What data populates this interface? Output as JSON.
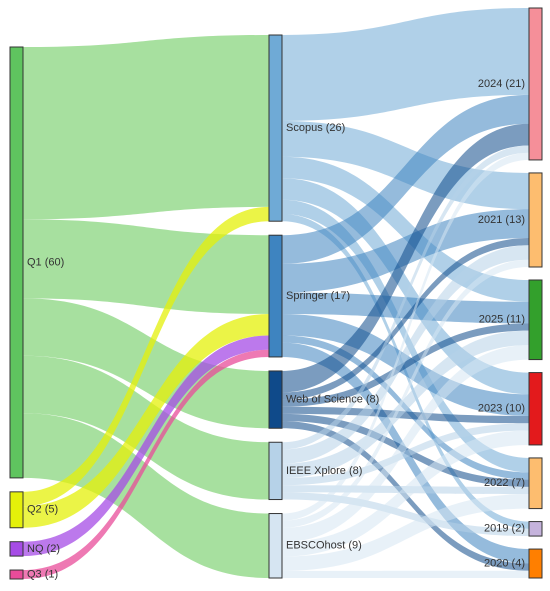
{
  "chart_data": {
    "type": "sankey",
    "columns": [
      [
        {
          "id": "Q1",
          "label": "Q1 (60)",
          "value": 60,
          "color": "#5fc45f"
        },
        {
          "id": "Q2",
          "label": "Q2 (5)",
          "value": 5,
          "color": "#e4f00a"
        },
        {
          "id": "NQ",
          "label": "NQ (2)",
          "value": 2,
          "color": "#a64ce6"
        },
        {
          "id": "Q3",
          "label": "Q3 (1)",
          "value": 1,
          "color": "#e84c9a"
        }
      ],
      [
        {
          "id": "Scopus",
          "label": "Scopus (26)",
          "value": 26,
          "color": "#6faad6"
        },
        {
          "id": "Springer",
          "label": "Springer (17)",
          "value": 17,
          "color": "#3e84c0"
        },
        {
          "id": "WoS",
          "label": "Web of Science (8)",
          "value": 8,
          "color": "#0f4a8a"
        },
        {
          "id": "IEEE",
          "label": "IEEE Xplore (8)",
          "value": 8,
          "color": "#b6d2e8"
        },
        {
          "id": "EBSCO",
          "label": "EBSCOhost (9)",
          "value": 9,
          "color": "#d6e5f2"
        }
      ],
      [
        {
          "id": "y2024",
          "label": "2024 (21)",
          "value": 21,
          "color": "#f58f99"
        },
        {
          "id": "y2021",
          "label": "2021 (13)",
          "value": 13,
          "color": "#fdbd6f"
        },
        {
          "id": "y2025",
          "label": "2025 (11)",
          "value": 11,
          "color": "#33a02c"
        },
        {
          "id": "y2023",
          "label": "2023 (10)",
          "value": 10,
          "color": "#e31a1c"
        },
        {
          "id": "y2022",
          "label": "2022 (7)",
          "value": 7,
          "color": "#fdbd6f"
        },
        {
          "id": "y2019",
          "label": "2019 (2)",
          "value": 2,
          "color": "#c5b3dc"
        },
        {
          "id": "y2020",
          "label": "2020 (4)",
          "value": 4,
          "color": "#ff7f00"
        }
      ]
    ],
    "links": [
      {
        "source": "Q1",
        "target": "Scopus",
        "value": 24
      },
      {
        "source": "Q1",
        "target": "Springer",
        "value": 11
      },
      {
        "source": "Q1",
        "target": "WoS",
        "value": 8
      },
      {
        "source": "Q1",
        "target": "IEEE",
        "value": 8
      },
      {
        "source": "Q1",
        "target": "EBSCO",
        "value": 9
      },
      {
        "source": "Q2",
        "target": "Scopus",
        "value": 2
      },
      {
        "source": "Q2",
        "target": "Springer",
        "value": 3
      },
      {
        "source": "NQ",
        "target": "Springer",
        "value": 2
      },
      {
        "source": "Q3",
        "target": "Springer",
        "value": 1
      },
      {
        "source": "Scopus",
        "target": "y2024",
        "value": 12
      },
      {
        "source": "Scopus",
        "target": "y2021",
        "value": 5
      },
      {
        "source": "Scopus",
        "target": "y2025",
        "value": 3
      },
      {
        "source": "Scopus",
        "target": "y2023",
        "value": 3
      },
      {
        "source": "Scopus",
        "target": "y2022",
        "value": 2
      },
      {
        "source": "Scopus",
        "target": "y2019",
        "value": 1
      },
      {
        "source": "Springer",
        "target": "y2024",
        "value": 4
      },
      {
        "source": "Springer",
        "target": "y2021",
        "value": 4
      },
      {
        "source": "Springer",
        "target": "y2025",
        "value": 3
      },
      {
        "source": "Springer",
        "target": "y2023",
        "value": 3
      },
      {
        "source": "Springer",
        "target": "y2022",
        "value": 1
      },
      {
        "source": "Springer",
        "target": "y2020",
        "value": 2
      },
      {
        "source": "WoS",
        "target": "y2024",
        "value": 3
      },
      {
        "source": "WoS",
        "target": "y2021",
        "value": 1
      },
      {
        "source": "WoS",
        "target": "y2025",
        "value": 1
      },
      {
        "source": "WoS",
        "target": "y2023",
        "value": 1
      },
      {
        "source": "WoS",
        "target": "y2022",
        "value": 1
      },
      {
        "source": "WoS",
        "target": "y2020",
        "value": 1
      },
      {
        "source": "IEEE",
        "target": "y2024",
        "value": 1
      },
      {
        "source": "IEEE",
        "target": "y2021",
        "value": 2
      },
      {
        "source": "IEEE",
        "target": "y2025",
        "value": 2
      },
      {
        "source": "IEEE",
        "target": "y2023",
        "value": 1
      },
      {
        "source": "IEEE",
        "target": "y2022",
        "value": 1
      },
      {
        "source": "IEEE",
        "target": "y2019",
        "value": 1
      },
      {
        "source": "EBSCO",
        "target": "y2024",
        "value": 1
      },
      {
        "source": "EBSCO",
        "target": "y2021",
        "value": 1
      },
      {
        "source": "EBSCO",
        "target": "y2025",
        "value": 2
      },
      {
        "source": "EBSCO",
        "target": "y2023",
        "value": 2
      },
      {
        "source": "EBSCO",
        "target": "y2022",
        "value": 2
      },
      {
        "source": "EBSCO",
        "target": "y2020",
        "value": 1
      }
    ]
  }
}
